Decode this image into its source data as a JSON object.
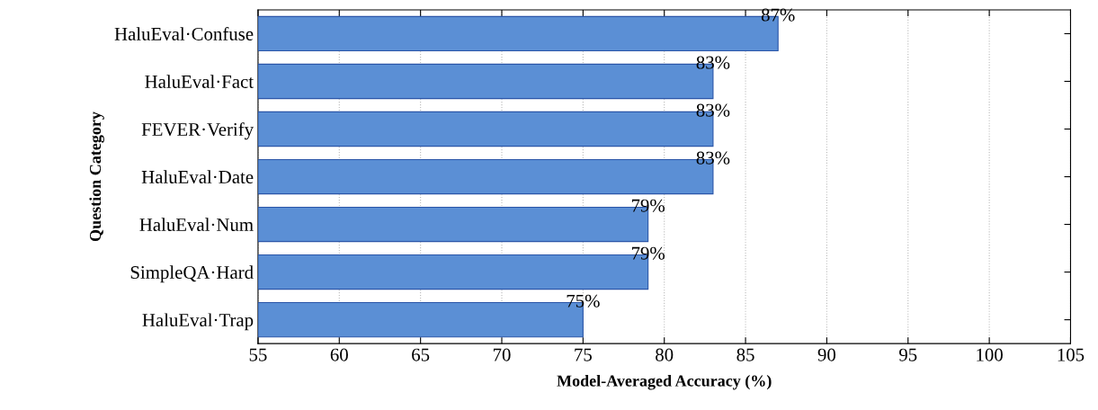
{
  "chart_data": {
    "type": "bar",
    "orientation": "horizontal",
    "xlabel": "Model-Averaged Accuracy (%)",
    "ylabel": "Question Category",
    "categories": [
      "HaluEval·Confuse",
      "HaluEval·Fact",
      "FEVER·Verify",
      "HaluEval·Date",
      "HaluEval·Num",
      "SimpleQA·Hard",
      "HaluEval·Trap"
    ],
    "values": [
      87,
      83,
      83,
      83,
      79,
      79,
      75
    ],
    "value_labels": [
      "87%",
      "83%",
      "83%",
      "83%",
      "79%",
      "79%",
      "75%"
    ],
    "color": "#5b8fd5",
    "xlim": [
      55,
      105
    ],
    "xticks": [
      55,
      60,
      65,
      70,
      75,
      80,
      85,
      90,
      95,
      100,
      105
    ],
    "grid": "x"
  }
}
